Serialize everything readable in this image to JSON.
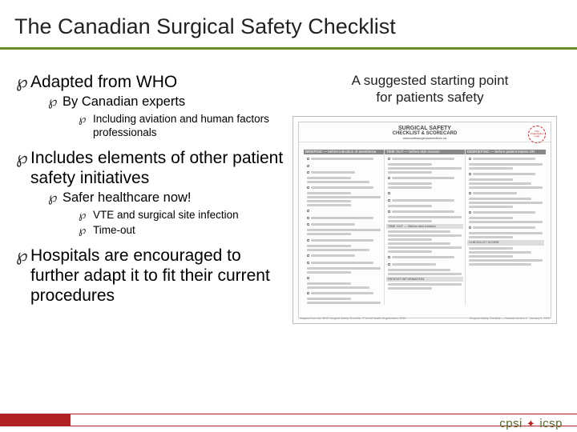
{
  "title": "The Canadian Surgical Safety Checklist",
  "bullets": {
    "b0": "Adapted from WHO",
    "b0_1": "By Canadian experts",
    "b0_1_1": "Including aviation and human factors professionals",
    "b1": "Includes elements of other patient safety initiatives",
    "b1_1": "Safer healthcare now!",
    "b1_1_1": "VTE and surgical site infection",
    "b1_1_2": "Time-out",
    "b2": "Hospitals are encouraged to further adapt it to fit their current procedures"
  },
  "right": {
    "subtitle_l1": "A suggested starting point",
    "subtitle_l2": "for patients safety"
  },
  "thumb": {
    "title": "SURGICAL SAFETY",
    "subtitle": "CHECKLIST & SCORECARD",
    "url": "www.safesurgerysaveslives.ca",
    "badge": "Your Organization Logo",
    "col1": "BRIEFING — before induction of anesthesia",
    "col2": "TIME OUT — before skin incision",
    "col3": "DEBRIEFING — before patient leaves OR",
    "sec_a": "TIME OUT — Before skin incision",
    "sec_b": "CHECKLIST SCORE",
    "sec_c": "PATIENT INFORMATION",
    "foot_left": "Adapted from the WHO Surgical Safety Checklist, © World Health Organization, 2008",
    "foot_right": "Surgical Safety Checklist — Canada  Version 1 · January 2, 2009"
  },
  "footer": {
    "logo_left": "cpsi",
    "logo_right": "icsp"
  },
  "colors": {
    "accent_green": "#6b8e23",
    "accent_red": "#b22222",
    "text": "#222222"
  }
}
